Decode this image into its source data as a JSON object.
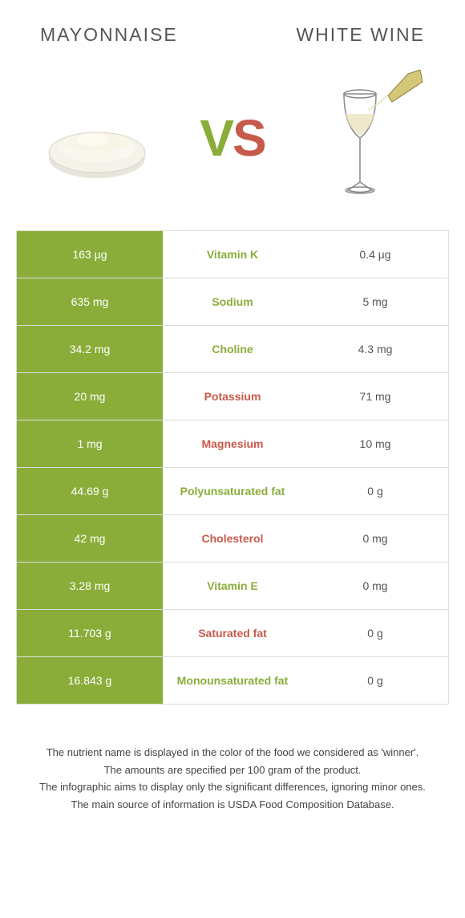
{
  "food_left": {
    "name": "MAYONNAISE",
    "color": "#8aad3a"
  },
  "food_right": {
    "name": "WHITE WINE",
    "color": "#c75a4a"
  },
  "colors": {
    "left_cell_bg": "#8aad3a",
    "right_cell_bg": "#ffffff",
    "left_text": "#ffffff",
    "right_text": "#555555",
    "border": "#dddddd"
  },
  "rows": [
    {
      "left": "163 µg",
      "label": "Vitamin K",
      "winner": "left",
      "right": "0.4 µg"
    },
    {
      "left": "635 mg",
      "label": "Sodium",
      "winner": "left",
      "right": "5 mg"
    },
    {
      "left": "34.2 mg",
      "label": "Choline",
      "winner": "left",
      "right": "4.3 mg"
    },
    {
      "left": "20 mg",
      "label": "Potassium",
      "winner": "right",
      "right": "71 mg"
    },
    {
      "left": "1 mg",
      "label": "Magnesium",
      "winner": "right",
      "right": "10 mg"
    },
    {
      "left": "44.69 g",
      "label": "Polyunsaturated fat",
      "winner": "left",
      "right": "0 g"
    },
    {
      "left": "42 mg",
      "label": "Cholesterol",
      "winner": "right",
      "right": "0 mg"
    },
    {
      "left": "3.28 mg",
      "label": "Vitamin E",
      "winner": "left",
      "right": "0 mg"
    },
    {
      "left": "11.703 g",
      "label": "Saturated fat",
      "winner": "right",
      "right": "0 g"
    },
    {
      "left": "16.843 g",
      "label": "Monounsaturated fat",
      "winner": "left",
      "right": "0 g"
    }
  ],
  "footer": [
    "The nutrient name is displayed in the color of the food we considered as 'winner'.",
    "The amounts are specified per 100 gram of the product.",
    "The infographic aims to display only the significant differences, ignoring minor ones.",
    "The main source of information is USDA Food Composition Database."
  ]
}
